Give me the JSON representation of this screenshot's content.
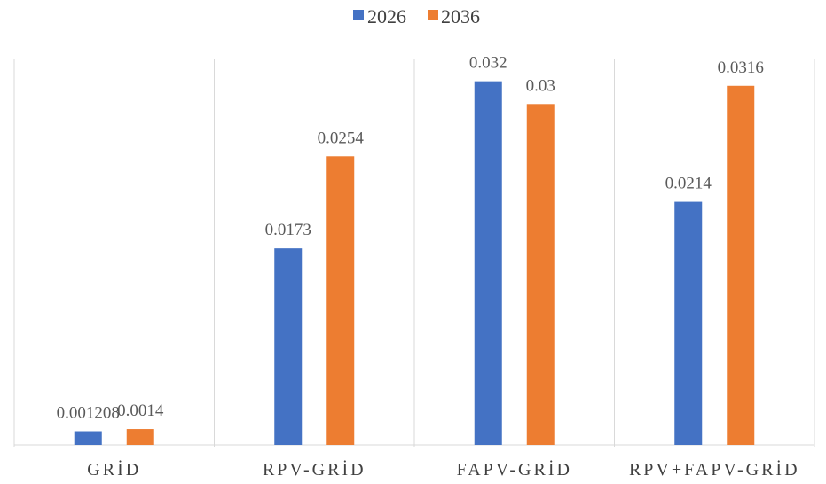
{
  "chart_data": {
    "type": "bar",
    "categories": [
      "GRİD",
      "RPV-GRİD",
      "FAPV-GRİD",
      "RPV+FAPV-GRİD"
    ],
    "series": [
      {
        "name": "2026",
        "color": "#4472C4",
        "values": [
          0.001208,
          0.0173,
          0.032,
          0.0214
        ],
        "labels": [
          "0.001208",
          "0.0173",
          "0.032",
          "0.0214"
        ]
      },
      {
        "name": "2036",
        "color": "#ED7D31",
        "values": [
          0.0014,
          0.0254,
          0.03,
          0.0316
        ],
        "labels": [
          "0.0014",
          "0.0254",
          "0.03",
          "0.0316"
        ]
      }
    ],
    "ylim": [
      0,
      0.034
    ],
    "grid": "vertical separators",
    "legend_position": "top-center",
    "title": "",
    "xlabel": "",
    "ylabel": ""
  }
}
